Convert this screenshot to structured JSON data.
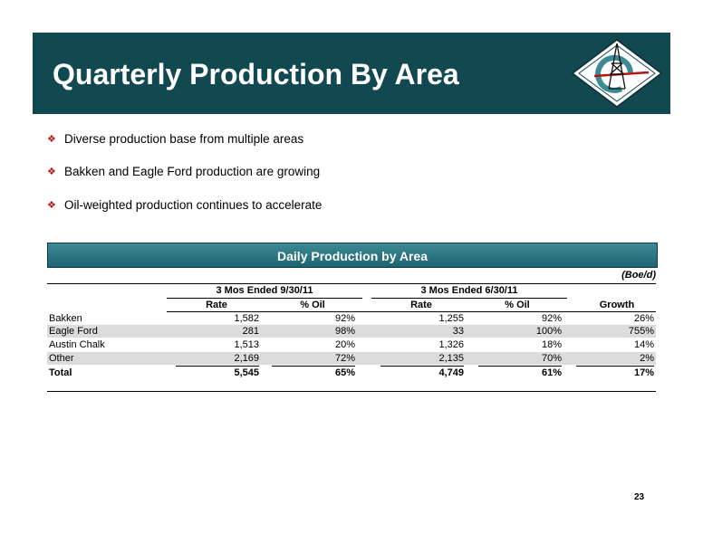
{
  "slide": {
    "title": "Quarterly Production By Area",
    "page_number": "23",
    "colors": {
      "header_band": "#124850",
      "bullet_mark": "#b01818",
      "table_bar": "#2a7480"
    }
  },
  "bullets": [
    "Diverse production base from multiple areas",
    "Bakken and Eagle Ford production are growing",
    "Oil-weighted production continues to accelerate"
  ],
  "bullet_icon": "diamond-bullet-icon",
  "table": {
    "title": "Daily Production by Area",
    "units": "(Boe/d)",
    "group_headers": [
      "3 Mos Ended 9/30/11",
      "3 Mos Ended 6/30/11"
    ],
    "column_headers": [
      "Rate",
      "% Oil",
      "Rate",
      "% Oil",
      "Growth"
    ],
    "rows": [
      {
        "area": "Bakken",
        "rate_q3": "1,582",
        "oil_q3": "92%",
        "rate_q2": "1,255",
        "oil_q2": "92%",
        "growth": "26%"
      },
      {
        "area": "Eagle Ford",
        "rate_q3": "281",
        "oil_q3": "98%",
        "rate_q2": "33",
        "oil_q2": "100%",
        "growth": "755%"
      },
      {
        "area": "Austin Chalk",
        "rate_q3": "1,513",
        "oil_q3": "20%",
        "rate_q2": "1,326",
        "oil_q2": "18%",
        "growth": "14%"
      },
      {
        "area": "Other",
        "rate_q3": "2,169",
        "oil_q3": "72%",
        "rate_q2": "2,135",
        "oil_q2": "70%",
        "growth": "2%"
      }
    ],
    "total": {
      "area": "Total",
      "rate_q3": "5,545",
      "oil_q3": "65%",
      "rate_q2": "4,749",
      "oil_q2": "61%",
      "growth": "17%"
    }
  }
}
